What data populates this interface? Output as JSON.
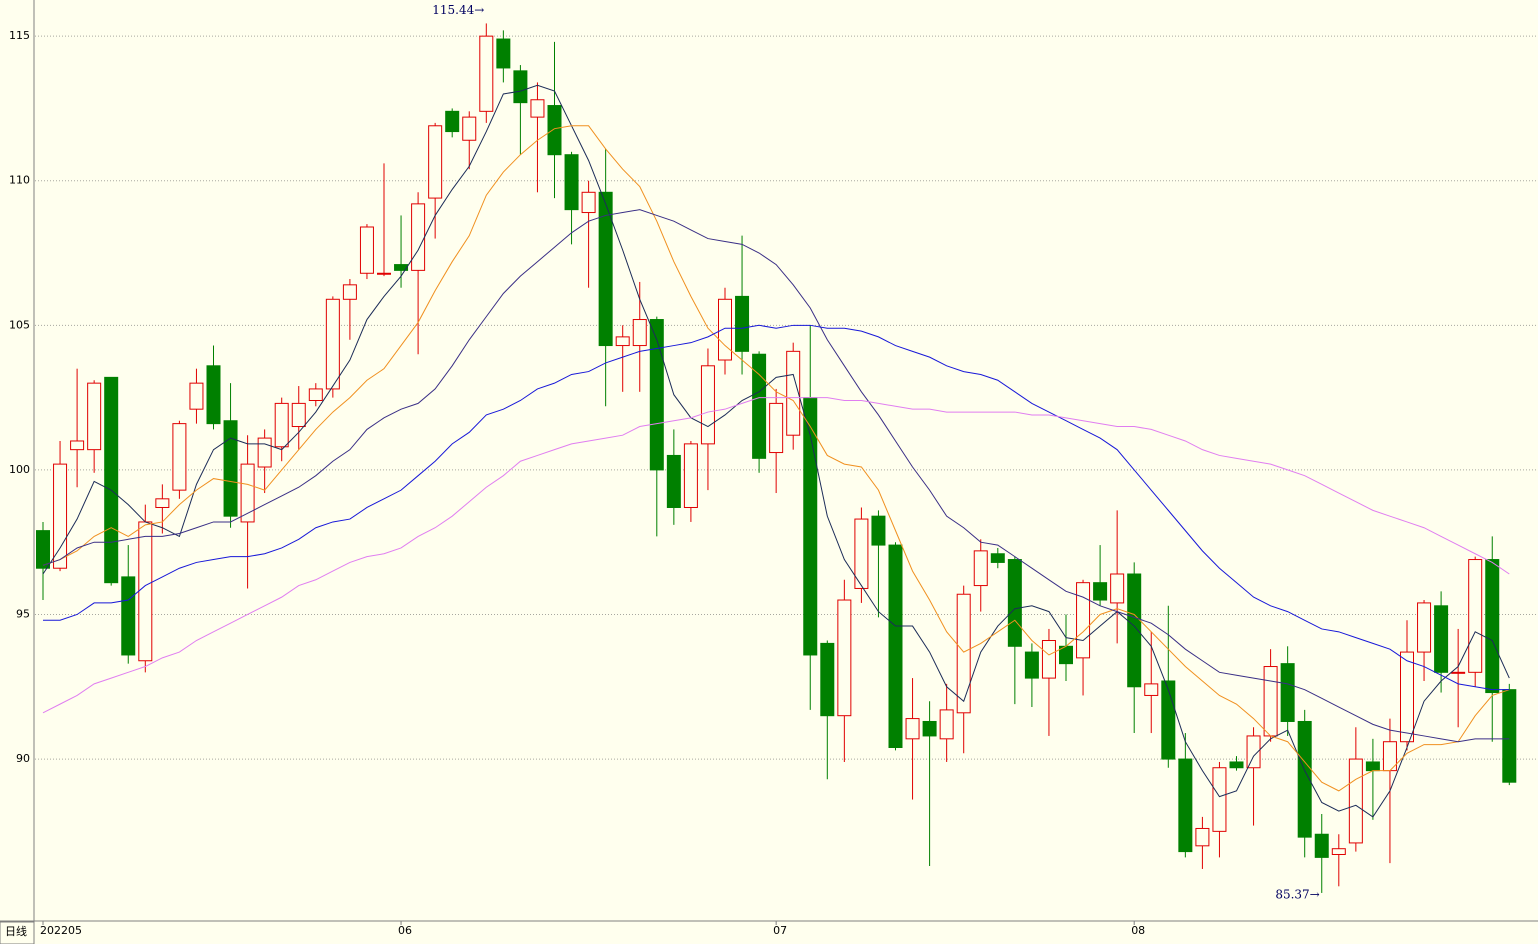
{
  "chart_data": {
    "type": "candlestick",
    "categories": [
      "202205",
      null,
      null,
      null,
      null,
      null,
      null,
      null,
      null,
      null,
      null,
      null,
      null,
      null,
      null,
      null,
      null,
      null,
      null,
      null,
      null,
      "06",
      null,
      null,
      null,
      null,
      null,
      null,
      null,
      null,
      null,
      null,
      null,
      null,
      null,
      null,
      null,
      null,
      null,
      null,
      null,
      null,
      null,
      "07",
      null,
      null,
      null,
      null,
      null,
      null,
      null,
      null,
      null,
      null,
      null,
      null,
      null,
      null,
      null,
      null,
      null,
      null,
      null,
      null,
      "08",
      null,
      null,
      null,
      null,
      null,
      null,
      null,
      null,
      null,
      null,
      null,
      null,
      null,
      null,
      null,
      null,
      null,
      null,
      null,
      null,
      null,
      null
    ],
    "open": [
      97.9,
      96.6,
      100.7,
      100.7,
      103.2,
      96.3,
      93.4,
      98.7,
      99.3,
      102.1,
      103.6,
      101.7,
      98.2,
      100.1,
      100.8,
      101.5,
      102.4,
      102.8,
      105.9,
      106.8,
      106.8,
      107.1,
      106.9,
      109.4,
      112.4,
      111.4,
      112.4,
      114.9,
      113.8,
      112.2,
      112.6,
      110.9,
      108.9,
      109.6,
      104.3,
      104.3,
      105.2,
      100.5,
      98.7,
      100.9,
      103.8,
      106.0,
      104.0,
      100.6,
      101.2,
      102.5,
      94.0,
      91.5,
      95.9,
      98.4,
      97.4,
      90.7,
      91.3,
      90.7,
      91.6,
      96.0,
      97.1,
      96.9,
      93.7,
      92.8,
      93.9,
      93.5,
      96.1,
      95.4,
      96.4,
      92.2,
      92.7,
      90.0,
      87.0,
      87.5,
      89.9,
      89.7,
      90.8,
      93.3,
      91.3,
      87.4,
      86.7,
      87.1,
      89.9,
      89.6,
      90.6,
      93.7,
      95.3,
      93.0,
      93.0,
      96.9,
      92.4
    ],
    "high": [
      98.2,
      101.0,
      103.5,
      103.1,
      103.2,
      97.4,
      98.8,
      99.5,
      101.7,
      103.5,
      104.3,
      103.0,
      101.2,
      101.4,
      102.5,
      102.9,
      103.0,
      106.0,
      106.6,
      108.5,
      110.6,
      108.8,
      109.6,
      112.0,
      112.5,
      112.4,
      115.44,
      115.2,
      114.0,
      113.4,
      114.8,
      111.0,
      110.0,
      111.1,
      105.0,
      106.5,
      105.3,
      101.4,
      101.0,
      104.2,
      106.3,
      108.1,
      104.1,
      102.8,
      104.4,
      105.0,
      94.1,
      96.2,
      98.7,
      98.6,
      97.5,
      92.8,
      92.0,
      92.6,
      96.0,
      97.6,
      97.3,
      97.0,
      94.0,
      94.5,
      95.0,
      96.2,
      97.4,
      98.6,
      96.8,
      94.4,
      95.3,
      90.9,
      88.0,
      89.9,
      90.1,
      91.1,
      93.8,
      93.9,
      91.7,
      88.1,
      87.4,
      91.1,
      90.7,
      91.4,
      94.8,
      95.5,
      95.8,
      94.5,
      97.0,
      97.7,
      92.6
    ],
    "low": [
      95.5,
      96.5,
      99.4,
      99.9,
      96.0,
      93.3,
      93.0,
      97.8,
      99.0,
      101.6,
      101.4,
      98.0,
      95.9,
      99.2,
      100.3,
      100.7,
      102.2,
      102.5,
      104.5,
      106.6,
      106.7,
      106.3,
      104.0,
      108.0,
      111.5,
      110.4,
      112.0,
      113.4,
      110.9,
      109.6,
      109.4,
      107.8,
      106.3,
      102.2,
      102.7,
      102.7,
      97.7,
      98.1,
      98.2,
      99.3,
      103.3,
      103.3,
      99.9,
      99.2,
      100.7,
      91.7,
      89.3,
      89.9,
      95.4,
      94.9,
      90.3,
      88.6,
      86.3,
      89.9,
      90.2,
      95.1,
      96.6,
      91.9,
      91.8,
      90.8,
      92.7,
      92.2,
      95.3,
      94.0,
      90.9,
      90.9,
      89.7,
      86.6,
      86.2,
      86.6,
      89.6,
      87.7,
      90.6,
      90.8,
      86.6,
      85.37,
      85.6,
      86.8,
      87.9,
      86.4,
      90.3,
      92.7,
      92.3,
      91.1,
      92.5,
      90.6,
      89.1
    ],
    "close": [
      96.6,
      100.2,
      101.0,
      103.0,
      96.1,
      93.6,
      98.2,
      99.0,
      101.6,
      103.0,
      101.6,
      98.4,
      100.2,
      101.1,
      102.3,
      102.3,
      102.8,
      105.9,
      106.4,
      108.4,
      106.8,
      106.9,
      109.2,
      111.9,
      111.7,
      112.2,
      115.0,
      113.9,
      112.7,
      112.8,
      110.9,
      109.0,
      109.6,
      104.3,
      104.6,
      105.2,
      100.0,
      98.7,
      100.9,
      103.6,
      105.9,
      104.1,
      100.4,
      102.3,
      104.1,
      93.6,
      91.5,
      95.5,
      98.3,
      97.4,
      90.4,
      91.4,
      90.8,
      91.7,
      95.7,
      97.2,
      96.8,
      93.9,
      92.8,
      94.1,
      93.3,
      96.1,
      95.5,
      96.4,
      92.5,
      92.6,
      90.0,
      86.8,
      87.6,
      89.7,
      89.7,
      90.8,
      93.2,
      91.3,
      87.3,
      86.6,
      86.9,
      90.0,
      89.6,
      90.6,
      93.7,
      95.4,
      93.0,
      93.0,
      96.9,
      92.3,
      89.2
    ],
    "up_color": "#e00000",
    "down_color": "#008000",
    "series": [
      {
        "color": "#1c2c58",
        "values": [
          96.4,
          97.3,
          98.3,
          99.6,
          99.3,
          98.8,
          98.2,
          98.0,
          97.7,
          99.5,
          100.7,
          101.1,
          100.9,
          100.9,
          100.7,
          101.3,
          102.0,
          102.9,
          103.8,
          105.2,
          106.0,
          106.7,
          107.6,
          108.8,
          109.7,
          110.5,
          111.7,
          113.0,
          113.1,
          113.3,
          113.1,
          111.9,
          110.7,
          109.2,
          107.6,
          105.9,
          104.5,
          102.6,
          101.8,
          101.5,
          101.9,
          102.4,
          102.7,
          103.2,
          103.3,
          101.2,
          98.4,
          96.9,
          96.0,
          95.1,
          94.6,
          94.6,
          93.7,
          92.5,
          92.0,
          93.7,
          94.6,
          95.2,
          95.3,
          95.1,
          94.2,
          94.1,
          94.6,
          95.1,
          94.6,
          93.9,
          92.4,
          90.6,
          89.6,
          88.7,
          88.9,
          90.1,
          90.7,
          91.0,
          89.6,
          88.5,
          88.2,
          88.4,
          88.0,
          88.9,
          90.4,
          92.0,
          92.7,
          93.2,
          94.4,
          94.1,
          92.8
        ]
      },
      {
        "color": "#f09020",
        "values": [
          96.7,
          96.9,
          97.2,
          97.7,
          98.0,
          97.7,
          98.1,
          98.2,
          98.8,
          99.3,
          99.7,
          99.6,
          99.5,
          99.3,
          100.0,
          100.7,
          101.4,
          102.0,
          102.5,
          103.1,
          103.5,
          104.3,
          105.1,
          106.2,
          107.2,
          108.1,
          109.5,
          110.3,
          110.9,
          111.4,
          111.8,
          111.9,
          111.9,
          111.1,
          110.4,
          109.8,
          108.6,
          107.2,
          106.0,
          104.9,
          104.3,
          103.8,
          103.3,
          102.7,
          102.4,
          101.5,
          100.5,
          100.2,
          100.1,
          99.3,
          97.9,
          96.5,
          95.5,
          94.4,
          93.7,
          94.0,
          94.4,
          94.8,
          94.1,
          93.6,
          93.9,
          94.4,
          95.0,
          95.2,
          95.0,
          94.4,
          93.8,
          93.2,
          92.7,
          92.2,
          91.9,
          91.4,
          90.8,
          90.6,
          89.9,
          89.2,
          88.9,
          89.3,
          89.6,
          89.6,
          90.2,
          90.5,
          90.5,
          90.6,
          91.5,
          92.2,
          92.4
        ]
      },
      {
        "color": "#3a2f86",
        "values": [
          96.7,
          96.9,
          97.3,
          97.5,
          97.5,
          97.6,
          97.7,
          97.7,
          97.8,
          98.0,
          98.2,
          98.2,
          98.5,
          98.8,
          99.1,
          99.4,
          99.8,
          100.3,
          100.7,
          101.4,
          101.8,
          102.1,
          102.3,
          102.8,
          103.6,
          104.5,
          105.3,
          106.1,
          106.7,
          107.2,
          107.7,
          108.2,
          108.6,
          108.8,
          108.9,
          109.0,
          108.8,
          108.6,
          108.3,
          108.0,
          107.9,
          107.8,
          107.5,
          107.1,
          106.4,
          105.6,
          104.5,
          103.6,
          102.7,
          101.9,
          101.0,
          100.1,
          99.3,
          98.4,
          98.0,
          97.5,
          97.4,
          97.0,
          96.6,
          96.2,
          95.8,
          95.6,
          95.3,
          95.1,
          94.9,
          94.7,
          94.3,
          93.8,
          93.4,
          93.0,
          92.9,
          92.8,
          92.7,
          92.6,
          92.4,
          92.1,
          91.8,
          91.5,
          91.2,
          91.0,
          90.9,
          90.8,
          90.7,
          90.6,
          90.7,
          90.7,
          90.7
        ]
      },
      {
        "color": "#1818d8",
        "values": [
          94.8,
          94.8,
          95.0,
          95.4,
          95.4,
          95.5,
          96.0,
          96.3,
          96.6,
          96.8,
          96.9,
          97.0,
          97.0,
          97.1,
          97.3,
          97.6,
          98.0,
          98.2,
          98.3,
          98.7,
          99.0,
          99.3,
          99.8,
          100.3,
          100.9,
          101.3,
          101.9,
          102.1,
          102.4,
          102.8,
          103.0,
          103.3,
          103.4,
          103.7,
          103.9,
          104.1,
          104.2,
          104.3,
          104.4,
          104.6,
          104.9,
          104.9,
          105.0,
          104.9,
          105.0,
          105.0,
          104.9,
          104.9,
          104.8,
          104.6,
          104.3,
          104.1,
          103.9,
          103.6,
          103.4,
          103.3,
          103.1,
          102.7,
          102.3,
          102.0,
          101.7,
          101.4,
          101.1,
          100.7,
          100.0,
          99.3,
          98.6,
          97.9,
          97.2,
          96.6,
          96.1,
          95.6,
          95.3,
          95.1,
          94.8,
          94.5,
          94.4,
          94.2,
          94.0,
          93.8,
          93.4,
          93.2,
          92.9,
          92.6,
          92.5,
          92.4,
          92.4
        ]
      },
      {
        "color": "#e07ef0",
        "values": [
          91.6,
          91.9,
          92.2,
          92.6,
          92.8,
          93.0,
          93.2,
          93.5,
          93.7,
          94.1,
          94.4,
          94.7,
          95.0,
          95.3,
          95.6,
          96.0,
          96.2,
          96.5,
          96.8,
          97.0,
          97.1,
          97.3,
          97.7,
          98.0,
          98.4,
          98.9,
          99.4,
          99.8,
          100.3,
          100.5,
          100.7,
          100.9,
          101.0,
          101.1,
          101.2,
          101.5,
          101.6,
          101.7,
          101.8,
          102.0,
          102.1,
          102.3,
          102.5,
          102.5,
          102.5,
          102.5,
          102.5,
          102.4,
          102.4,
          102.3,
          102.2,
          102.1,
          102.1,
          102.0,
          102.0,
          102.0,
          102.0,
          102.0,
          101.9,
          101.9,
          101.8,
          101.7,
          101.6,
          101.5,
          101.5,
          101.4,
          101.2,
          101.0,
          100.7,
          100.5,
          100.4,
          100.3,
          100.2,
          100.0,
          99.8,
          99.5,
          99.2,
          98.9,
          98.6,
          98.4,
          98.2,
          98.0,
          97.7,
          97.4,
          97.1,
          96.8,
          96.4
        ]
      }
    ],
    "annotations": [
      {
        "text": "115.44→"
      },
      {
        "text": "85.37→"
      }
    ],
    "period_label": "日线",
    "ylim": [
      84.4,
      116.25
    ],
    "yticks": [
      90,
      95,
      100,
      105,
      110,
      115
    ],
    "grid": true
  }
}
